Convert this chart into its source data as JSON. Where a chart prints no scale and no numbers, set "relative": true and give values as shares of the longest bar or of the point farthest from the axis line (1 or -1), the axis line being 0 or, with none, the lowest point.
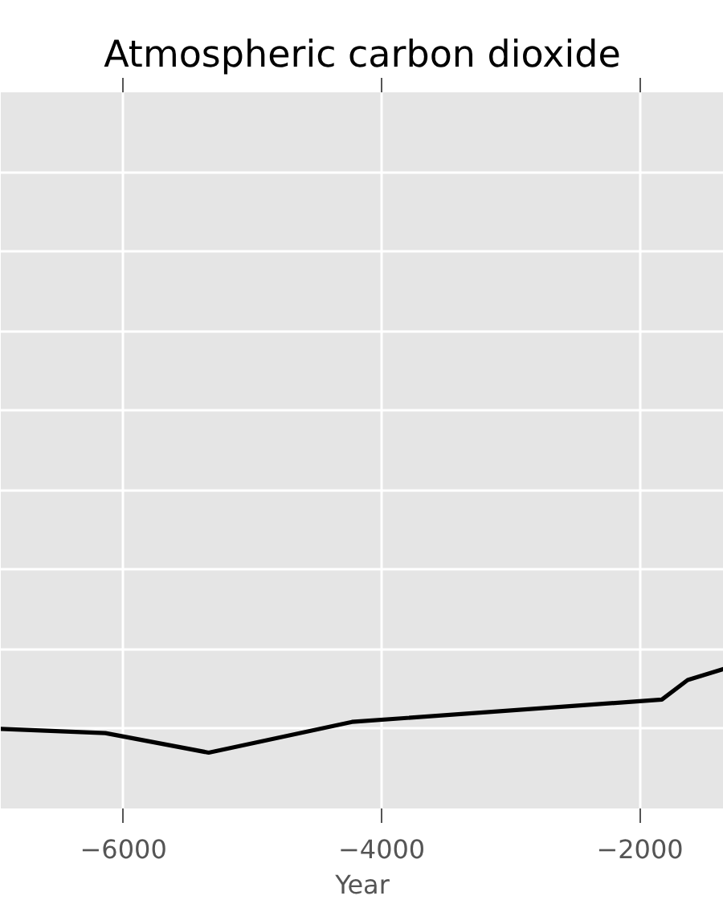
{
  "chart_data": {
    "type": "line",
    "title": "Atmospheric carbon dioxide",
    "xlabel": "Year",
    "relative": true,
    "grid": true,
    "xlim": [
      -6950,
      -1350
    ],
    "xticks": [
      -6000,
      -4000,
      -2000
    ],
    "x": [
      -6950,
      -6140,
      -5340,
      -4230,
      -1830,
      -1630,
      -1350
    ],
    "color": "#000000",
    "values": [
      0.57,
      0.54,
      0.4,
      0.62,
      0.78,
      0.92,
      1
    ]
  }
}
